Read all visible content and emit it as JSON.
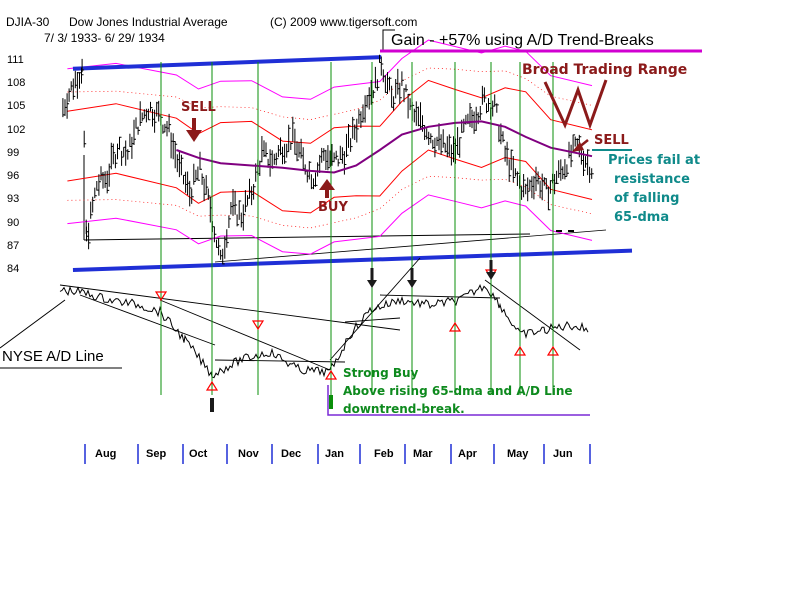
{
  "header": {
    "index": "DJIA-30",
    "name": "Dow Jones Industrial Average",
    "copyright": "(C) 2009 www.tigersoft.com",
    "date_range": "7/ 3/ 1933- 6/ 29/ 1934"
  },
  "gain_label": "Gain - +57% using A/D Trend-Breaks",
  "annotations": {
    "broad_range": "Broad Trading Range",
    "sell1": "SELL",
    "buy1": "BUY",
    "sell2": "SELL",
    "prices_fail": [
      "Prices fail at",
      "resistance",
      "of falling",
      "65-dma"
    ],
    "ad_label": "NYSE A/D Line",
    "strong_buy": [
      "Strong Buy",
      "Above rising 65-dma and A/D Line",
      "downtrend-break."
    ]
  },
  "colors": {
    "price": "#000000",
    "ma65": "#800080",
    "band_inner": "#ff0000",
    "band_outer": "#ff00ff",
    "trend_channel": "#1f2fd6",
    "signal_lines": "#0a8f0a"
  },
  "chart_data": {
    "type": "line",
    "title": "DJIA-30 Dow Jones Industrial Average",
    "x_categories": [
      "Aug",
      "Sep",
      "Oct",
      "Nov",
      "Dec",
      "Jan",
      "Feb",
      "Mar",
      "Apr",
      "May",
      "Jun"
    ],
    "y_ticks": [
      84,
      87,
      90,
      93,
      96,
      99,
      102,
      105,
      108,
      111
    ],
    "ylim": [
      84,
      111
    ],
    "series": [
      {
        "key": "djia_close",
        "points": [
          [
            "1933-07-05",
            105
          ],
          [
            "1933-07-12",
            108
          ],
          [
            "1933-07-18",
            110
          ],
          [
            "1933-07-21",
            88
          ],
          [
            "1933-07-28",
            95
          ],
          [
            "1933-08-04",
            96
          ],
          [
            "1933-08-11",
            100
          ],
          [
            "1933-08-18",
            99
          ],
          [
            "1933-08-25",
            103
          ],
          [
            "1933-09-01",
            105
          ],
          [
            "1933-09-08",
            104
          ],
          [
            "1933-09-15",
            102
          ],
          [
            "1933-09-22",
            97
          ],
          [
            "1933-09-29",
            94
          ],
          [
            "1933-10-06",
            97
          ],
          [
            "1933-10-13",
            92
          ],
          [
            "1933-10-20",
            85
          ],
          [
            "1933-10-27",
            92
          ],
          [
            "1933-11-03",
            91
          ],
          [
            "1933-11-10",
            94
          ],
          [
            "1933-11-17",
            99
          ],
          [
            "1933-11-24",
            98
          ],
          [
            "1933-12-01",
            100
          ],
          [
            "1933-12-08",
            101
          ],
          [
            "1933-12-15",
            98
          ],
          [
            "1933-12-22",
            96
          ],
          [
            "1933-12-29",
            99
          ],
          [
            "1934-01-05",
            98
          ],
          [
            "1934-01-12",
            99
          ],
          [
            "1934-01-19",
            102
          ],
          [
            "1934-01-26",
            106
          ],
          [
            "1934-02-02",
            108
          ],
          [
            "1934-02-06",
            111
          ],
          [
            "1934-02-13",
            106
          ],
          [
            "1934-02-20",
            108
          ],
          [
            "1934-02-27",
            104
          ],
          [
            "1934-03-06",
            103
          ],
          [
            "1934-03-13",
            101
          ],
          [
            "1934-03-20",
            100
          ],
          [
            "1934-03-27",
            99
          ],
          [
            "1934-04-03",
            102
          ],
          [
            "1934-04-10",
            104
          ],
          [
            "1934-04-17",
            106
          ],
          [
            "1934-04-24",
            105
          ],
          [
            "1934-05-01",
            99
          ],
          [
            "1934-05-08",
            96
          ],
          [
            "1934-05-15",
            94
          ],
          [
            "1934-05-22",
            96
          ],
          [
            "1934-05-29",
            94
          ],
          [
            "1934-06-05",
            96
          ],
          [
            "1934-06-12",
            98
          ],
          [
            "1934-06-19",
            100
          ],
          [
            "1934-06-29",
            97
          ]
        ]
      },
      {
        "key": "ma65",
        "points": [
          [
            "1933-09-20",
            99.5
          ],
          [
            "1933-10-05",
            98.5
          ],
          [
            "1933-10-20",
            97.8
          ],
          [
            "1933-11-10",
            97.5
          ],
          [
            "1933-12-01",
            97.2
          ],
          [
            "1933-12-20",
            96.8
          ],
          [
            "1934-01-05",
            96.6
          ],
          [
            "1934-01-20",
            97.5
          ],
          [
            "1934-02-05",
            99.5
          ],
          [
            "1934-02-20",
            101.5
          ],
          [
            "1934-03-10",
            102.5
          ],
          [
            "1934-03-28",
            103
          ],
          [
            "1934-04-15",
            103.2
          ],
          [
            "1934-05-01",
            102.5
          ],
          [
            "1934-05-15",
            101.2
          ],
          [
            "1934-06-01",
            99.8
          ],
          [
            "1934-06-29",
            98.7
          ]
        ]
      }
    ],
    "signals": [
      {
        "type": "sell",
        "date": "1933-09-22",
        "value": 100
      },
      {
        "type": "buy",
        "date": "1934-01-02",
        "value": 96
      },
      {
        "type": "sell",
        "date": "1934-06-08",
        "value": 99
      }
    ],
    "channel_lines": [
      [
        [
          "1933-07-05",
          110
        ],
        [
          "1934-02-06",
          111.5
        ]
      ],
      [
        [
          "1933-07-05",
          84
        ],
        [
          "1934-06-29",
          86.5
        ]
      ]
    ]
  }
}
